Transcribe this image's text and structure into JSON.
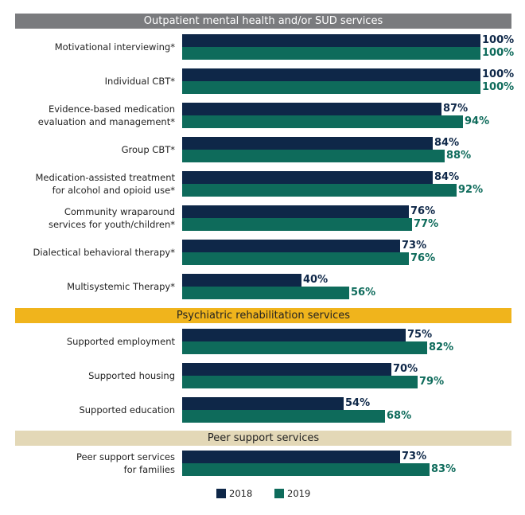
{
  "chart_data": {
    "type": "bar",
    "orientation": "horizontal",
    "title": "",
    "xlabel": "",
    "ylabel": "",
    "xlim": [
      0,
      100
    ],
    "grid": false,
    "legend_position": "bottom",
    "value_format": "percent",
    "series": [
      {
        "name": "2018",
        "color": "#0e2748"
      },
      {
        "name": "2019",
        "color": "#0e6b5b"
      }
    ],
    "sections": [
      {
        "title": "Outpatient mental health and/or SUD services",
        "header_bg": "#7a7b7e",
        "header_fg": "#ffffff",
        "categories": [
          {
            "label": [
              "Motivational interviewing*"
            ],
            "values": [
              100,
              100
            ]
          },
          {
            "label": [
              "Individual CBT*"
            ],
            "values": [
              100,
              100
            ]
          },
          {
            "label": [
              "Evidence-based medication",
              "evaluation and management*"
            ],
            "values": [
              87,
              94
            ]
          },
          {
            "label": [
              "Group CBT*"
            ],
            "values": [
              84,
              88
            ]
          },
          {
            "label": [
              "Medication-assisted treatment",
              "for alcohol and opioid use*"
            ],
            "values": [
              84,
              92
            ]
          },
          {
            "label": [
              "Community wraparound",
              "services for youth/children*"
            ],
            "values": [
              76,
              77
            ]
          },
          {
            "label": [
              "Dialectical behavioral therapy*"
            ],
            "values": [
              73,
              76
            ]
          },
          {
            "label": [
              "Multisystemic Therapy*"
            ],
            "values": [
              40,
              56
            ]
          }
        ]
      },
      {
        "title": "Psychiatric rehabilitation services",
        "header_bg": "#f0b41c",
        "header_fg": "#222222",
        "categories": [
          {
            "label": [
              "Supported employment"
            ],
            "values": [
              75,
              82
            ]
          },
          {
            "label": [
              "Supported housing"
            ],
            "values": [
              70,
              79
            ]
          },
          {
            "label": [
              "Supported education"
            ],
            "values": [
              54,
              68
            ]
          }
        ]
      },
      {
        "title": "Peer support services",
        "header_bg": "#e3d8b7",
        "header_fg": "#222222",
        "categories": [
          {
            "label": [
              "Peer support services",
              "for families"
            ],
            "values": [
              73,
              83
            ]
          }
        ]
      }
    ]
  }
}
